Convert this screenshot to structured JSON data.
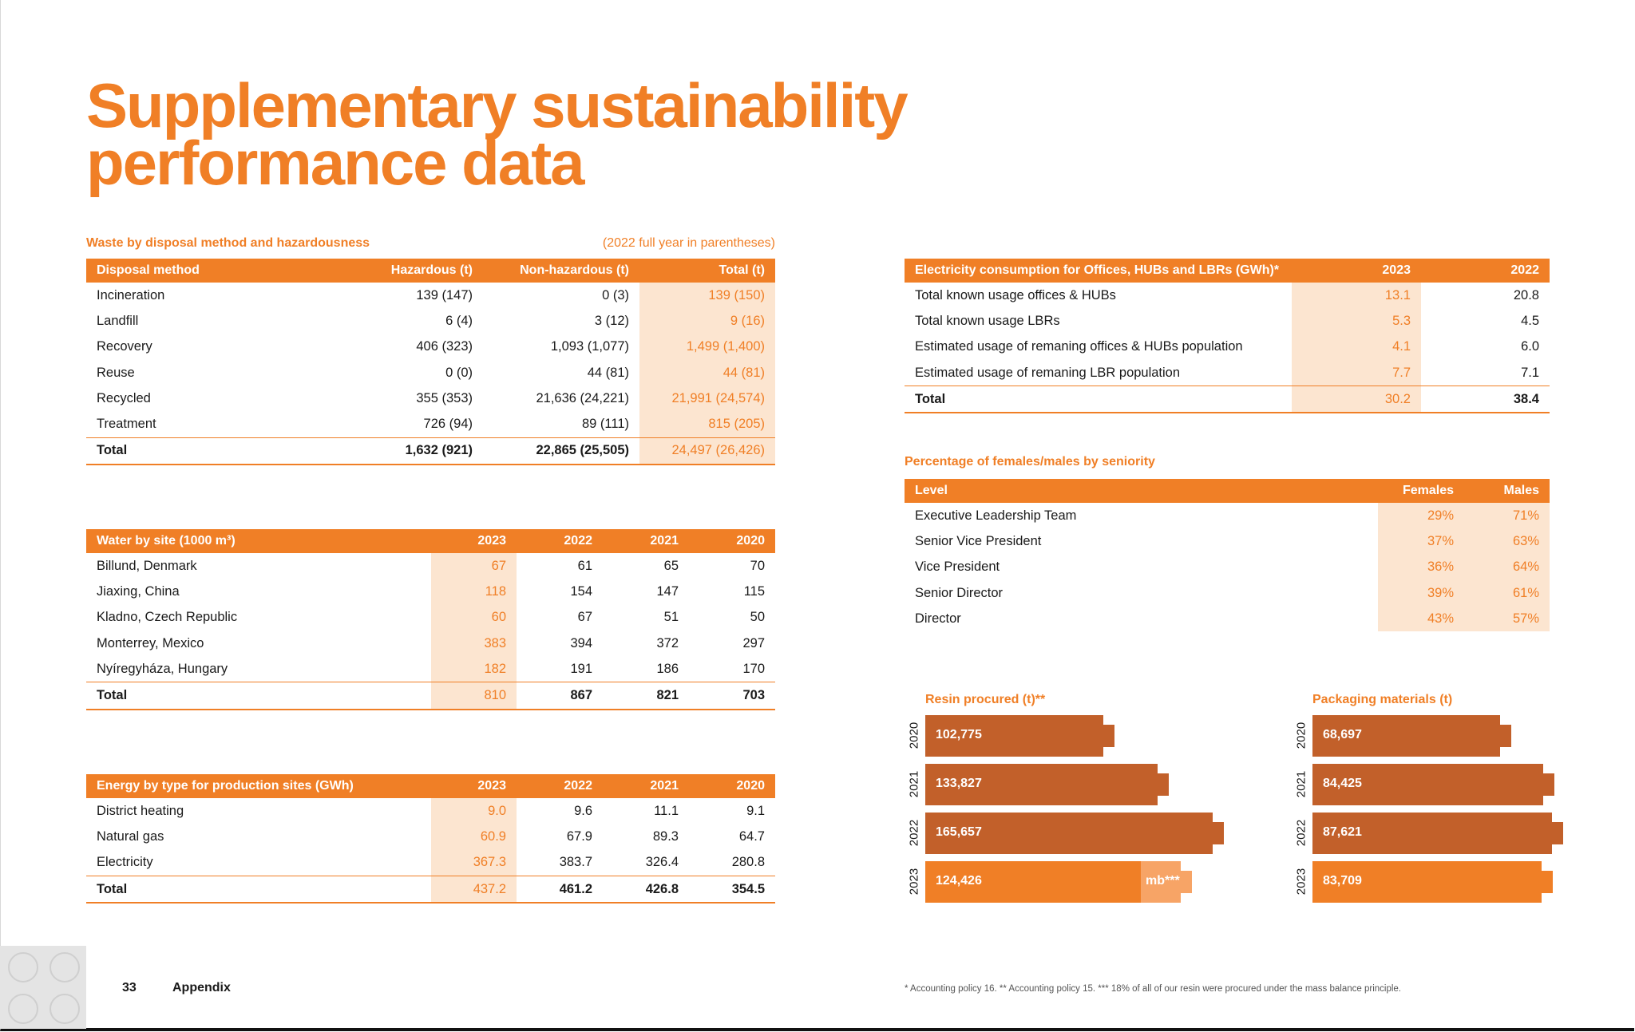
{
  "title": {
    "line1": "Supplementary sustainability",
    "line2": "performance data"
  },
  "waste": {
    "title": "Waste by disposal method and hazardousness",
    "note": "(2022 full year in parentheses)",
    "headers": [
      "Disposal method",
      "Hazardous (t)",
      "Non-hazardous (t)",
      "Total (t)"
    ],
    "rows": [
      [
        "Incineration",
        "139 (147)",
        "0 (3)",
        "139 (150)"
      ],
      [
        "Landfill",
        "6 (4)",
        "3 (12)",
        "9 (16)"
      ],
      [
        "Recovery",
        "406 (323)",
        "1,093 (1,077)",
        "1,499 (1,400)"
      ],
      [
        "Reuse",
        "0 (0)",
        "44 (81)",
        "44 (81)"
      ],
      [
        "Recycled",
        "355 (353)",
        "21,636 (24,221)",
        "21,991 (24,574)"
      ],
      [
        "Treatment",
        "726 (94)",
        "89 (111)",
        "815 (205)"
      ]
    ],
    "total": [
      "Total",
      "1,632 (921)",
      "22,865 (25,505)",
      "24,497 (26,426)"
    ]
  },
  "water": {
    "headers": [
      "Water by site (1000 m³)",
      "2023",
      "2022",
      "2021",
      "2020"
    ],
    "rows": [
      [
        "Billund, Denmark",
        "67",
        "61",
        "65",
        "70"
      ],
      [
        "Jiaxing, China",
        "118",
        "154",
        "147",
        "115"
      ],
      [
        "Kladno, Czech Republic",
        "60",
        "67",
        "51",
        "50"
      ],
      [
        "Monterrey, Mexico",
        "383",
        "394",
        "372",
        "297"
      ],
      [
        "Nyíregyháza, Hungary",
        "182",
        "191",
        "186",
        "170"
      ]
    ],
    "total": [
      "Total",
      "810",
      "867",
      "821",
      "703"
    ]
  },
  "energy": {
    "headers": [
      "Energy by type for production sites (GWh)",
      "2023",
      "2022",
      "2021",
      "2020"
    ],
    "rows": [
      [
        "District heating",
        "9.0",
        "9.6",
        "11.1",
        "9.1"
      ],
      [
        "Natural gas",
        "60.9",
        "67.9",
        "89.3",
        "64.7"
      ],
      [
        "Electricity",
        "367.3",
        "383.7",
        "326.4",
        "280.8"
      ]
    ],
    "total": [
      "Total",
      "437.2",
      "461.2",
      "426.8",
      "354.5"
    ]
  },
  "electricity": {
    "headers": [
      "Electricity consumption for Offices, HUBs and LBRs (GWh)*",
      "2023",
      "2022"
    ],
    "rows": [
      [
        "Total known usage offices & HUBs",
        "13.1",
        "20.8"
      ],
      [
        "Total known usage LBRs",
        "5.3",
        "4.5"
      ],
      [
        "Estimated usage of remaning offices & HUBs population",
        "4.1",
        "6.0"
      ],
      [
        "Estimated usage of remaning LBR population",
        "7.7",
        "7.1"
      ]
    ],
    "total": [
      "Total",
      "30.2",
      "38.4"
    ]
  },
  "seniority": {
    "title": "Percentage of females/males by seniority",
    "headers": [
      "Level",
      "Females",
      "Males"
    ],
    "rows": [
      [
        "Executive Leadership Team",
        "29%",
        "71%"
      ],
      [
        "Senior Vice President",
        "37%",
        "63%"
      ],
      [
        "Vice President",
        "36%",
        "64%"
      ],
      [
        "Senior Director",
        "39%",
        "61%"
      ],
      [
        "Director",
        "43%",
        "57%"
      ]
    ]
  },
  "chart_data": [
    {
      "type": "bar",
      "title": "Resin procured (t)**",
      "categories": [
        "2020",
        "2021",
        "2022",
        "2023"
      ],
      "values": [
        102775,
        133827,
        165657,
        124426
      ],
      "labels": [
        "102,775",
        "133,827",
        "165,657",
        "124,426"
      ],
      "extra_label": "mb***",
      "highlight_color": "#f07f26",
      "bar_color": "#c2602a"
    },
    {
      "type": "bar",
      "title": "Packaging materials (t)",
      "categories": [
        "2020",
        "2021",
        "2022",
        "2023"
      ],
      "values": [
        68697,
        84425,
        87621,
        83709
      ],
      "labels": [
        "68,697",
        "84,425",
        "87,621",
        "83,709"
      ],
      "highlight_color": "#f07f26",
      "bar_color": "#c2602a"
    }
  ],
  "footer": {
    "page": "33",
    "section": "Appendix",
    "footnote": "* Accounting policy 16.    ** Accounting policy 15.    *** 18% of all of our resin were procured under the mass balance principle."
  }
}
